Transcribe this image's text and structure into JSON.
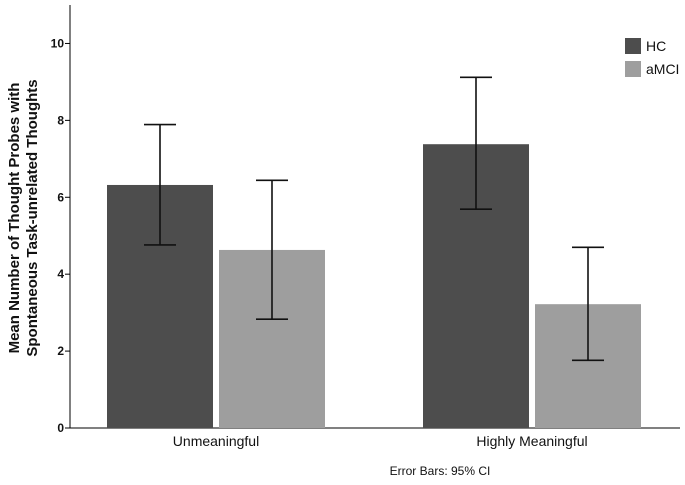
{
  "chart_data": {
    "type": "bar",
    "title": "",
    "xlabel": "",
    "ylabel": [
      "Mean Number of Thought Probes with",
      "Spontaneous Task-unrelated Thoughts"
    ],
    "ylim": [
      0,
      11
    ],
    "yticks": [
      0,
      2,
      4,
      6,
      8,
      10
    ],
    "categories": [
      "Unmeaningful",
      "Highly Meaningful"
    ],
    "series": [
      {
        "name": "HC",
        "color": "#4d4d4d",
        "values": [
          6.32,
          7.38
        ],
        "ci_low": [
          4.76,
          5.69
        ],
        "ci_high": [
          7.89,
          9.12
        ]
      },
      {
        "name": "aMCI",
        "color": "#9e9e9e",
        "values": [
          4.63,
          3.22
        ],
        "ci_low": [
          2.83,
          1.76
        ],
        "ci_high": [
          6.44,
          4.7
        ]
      }
    ],
    "legend": {
      "position": "top-right"
    },
    "footnote": "Error Bars: 95% CI",
    "grid": false
  }
}
